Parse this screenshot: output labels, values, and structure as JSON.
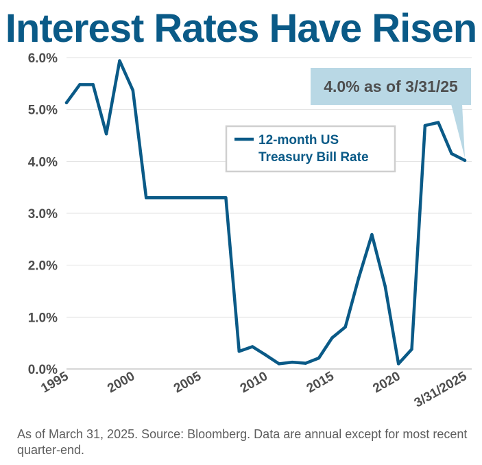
{
  "chart_data": {
    "type": "line",
    "title": "Interest Rates Have Risen",
    "xlabel": "",
    "ylabel": "",
    "x": [
      1995,
      1996,
      1997,
      1998,
      1999,
      2000,
      2001,
      2002,
      2003,
      2004,
      2005,
      2006,
      2007,
      2008,
      2009,
      2010,
      2011,
      2012,
      2013,
      2014,
      2015,
      2016,
      2017,
      2018,
      2019,
      2020,
      2021,
      2022,
      2023,
      2024,
      2025
    ],
    "series": [
      {
        "name": "12-month US Treasury Bill Rate",
        "color": "#0a5a87",
        "values": [
          5.13,
          5.48,
          5.48,
          4.53,
          5.94,
          5.37,
          3.3,
          3.3,
          3.3,
          3.3,
          3.3,
          3.3,
          3.3,
          0.34,
          0.43,
          0.27,
          0.1,
          0.13,
          0.11,
          0.21,
          0.6,
          0.81,
          1.75,
          2.59,
          1.59,
          0.1,
          0.38,
          4.69,
          4.75,
          4.15,
          4.02
        ]
      }
    ],
    "xticks": [
      {
        "value": 1995,
        "label": "1995"
      },
      {
        "value": 2000,
        "label": "2000"
      },
      {
        "value": 2005,
        "label": "2005"
      },
      {
        "value": 2010,
        "label": "2010"
      },
      {
        "value": 2015,
        "label": "2015"
      },
      {
        "value": 2020,
        "label": "2020"
      },
      {
        "value": 2025,
        "label": "3/31/2025"
      }
    ],
    "yticks": [
      {
        "value": 0,
        "label": "0.0%"
      },
      {
        "value": 1,
        "label": "1.0%"
      },
      {
        "value": 2,
        "label": "2.0%"
      },
      {
        "value": 3,
        "label": "3.0%"
      },
      {
        "value": 4,
        "label": "4.0%"
      },
      {
        "value": 5,
        "label": "5.0%"
      },
      {
        "value": 6,
        "label": "6.0%"
      }
    ],
    "xlim": [
      1995,
      2025
    ],
    "ylim": [
      0,
      6
    ],
    "grid": true,
    "legend": {
      "position": "top-center",
      "entries": [
        "12-month US",
        "Treasury Bill Rate"
      ]
    },
    "annotation": {
      "text": "4.0% as of 3/31/25",
      "x": 2025,
      "y": 4.02,
      "color": "#b9d8e5"
    }
  },
  "footnote": "As of March 31, 2025. Source: Bloomberg. Data are annual except for most recent quarter-end."
}
